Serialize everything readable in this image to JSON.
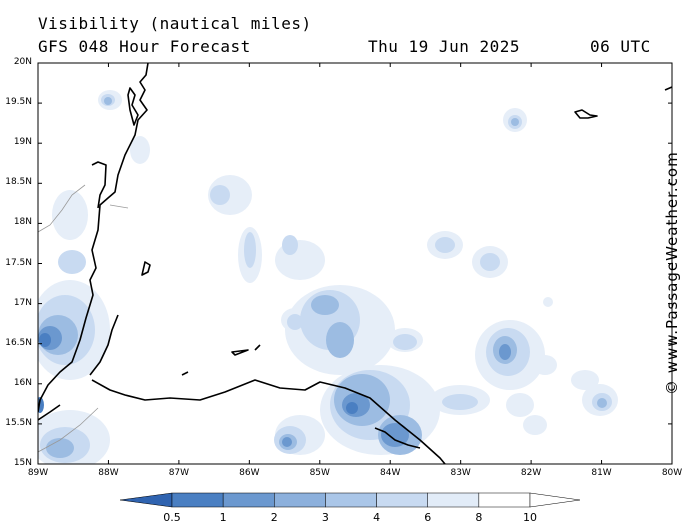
{
  "header": {
    "title": "Visibility (nautical miles)",
    "subtitle": "GFS 048 Hour Forecast",
    "date": "Thu 19 Jun 2025",
    "time": "06 UTC"
  },
  "credit": "© www.PassageWeather.com",
  "map": {
    "lat_labels": [
      "20N",
      "19.5N",
      "19N",
      "18.5N",
      "18N",
      "17.5N",
      "17N",
      "16.5N",
      "16N",
      "15.5N",
      "15N"
    ],
    "lon_labels": [
      "89W",
      "88W",
      "87W",
      "86W",
      "85W",
      "84W",
      "83W",
      "82W",
      "81W",
      "80W"
    ]
  },
  "legend": {
    "labels": [
      "0.5",
      "1",
      "2",
      "3",
      "4",
      "6",
      "8",
      "10"
    ],
    "colors": [
      "#2f63b0",
      "#4a7fc2",
      "#6b98cf",
      "#8cb0dc",
      "#aac6e8",
      "#c8daf1",
      "#e2ecf8",
      "#ffffff"
    ]
  }
}
